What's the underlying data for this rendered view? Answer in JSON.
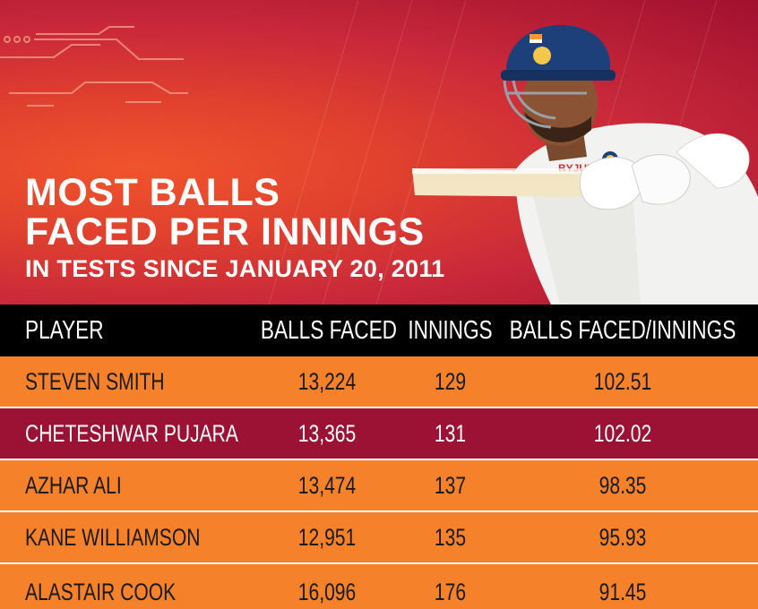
{
  "title": {
    "line1": "MOST BALLS",
    "line2": "FACED PER INNINGS",
    "subtitle": "IN TESTS SINCE JANUARY 20, 2011"
  },
  "colors": {
    "header_bg": "#000000",
    "row_orange": "#f5822a",
    "row_maroon": "#9b1234",
    "hero_red": "#d8342f"
  },
  "table": {
    "headers": [
      "PLAYER",
      "BALLS FACED",
      "INNINGS",
      "BALLS FACED/INNINGS"
    ],
    "rows": [
      {
        "player": "STEVEN SMITH",
        "balls": "13,224",
        "innings": "129",
        "ratio": "102.51"
      },
      {
        "player": "CHETESHWAR PUJARA",
        "balls": "13,365",
        "innings": "131",
        "ratio": "102.02"
      },
      {
        "player": "AZHAR ALI",
        "balls": "13,474",
        "innings": "137",
        "ratio": "98.35"
      },
      {
        "player": "KANE WILLIAMSON",
        "balls": "12,951",
        "innings": "135",
        "ratio": "95.93"
      },
      {
        "player": "ALASTAIR COOK",
        "balls": "16,096",
        "innings": "176",
        "ratio": "91.45"
      }
    ]
  }
}
